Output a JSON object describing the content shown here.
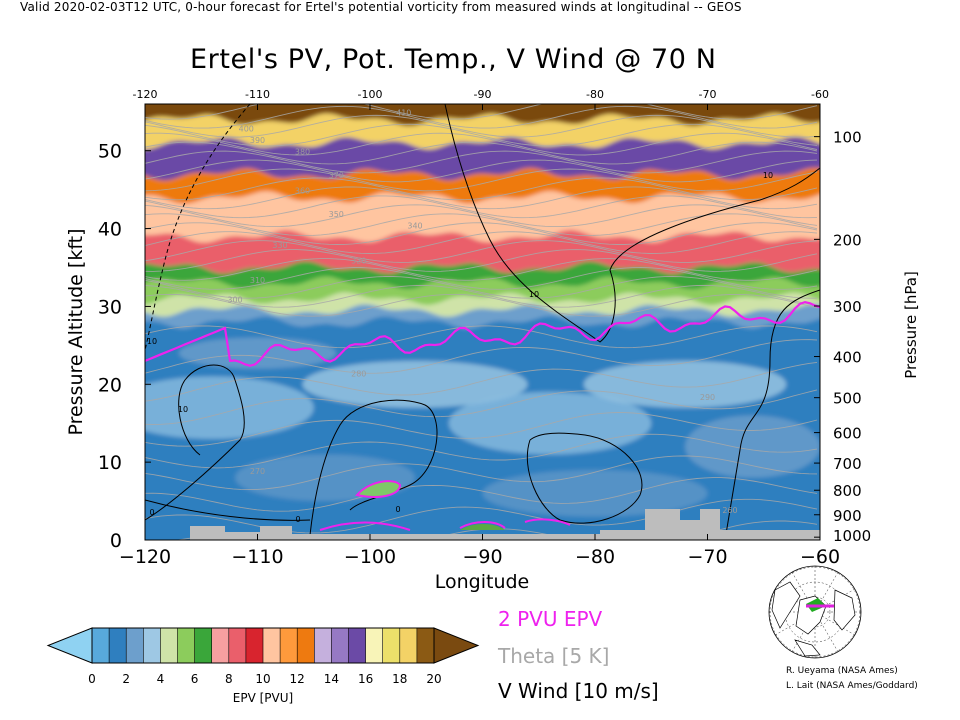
{
  "header": {
    "valid_line": "Valid 2020-02-03T12 UTC, 0-hour forecast for Ertel's potential vorticity from measured winds at longitudinal -- GEOS",
    "title": "Ertel's PV, Pot. Temp., V Wind @ 70 N"
  },
  "chart_data": {
    "type": "heatmap",
    "title": "Ertel's PV, Pot. Temp., V Wind @ 70 N",
    "xlabel": "Longitude",
    "ylabel_left": "Pressure Altitude [kft]",
    "ylabel_right": "Pressure [hPa]",
    "xlim": [
      -120,
      -60
    ],
    "ylim_kft": [
      0,
      56
    ],
    "x_ticks_bottom": [
      "−120",
      "−110",
      "−100",
      "−90",
      "−80",
      "−70",
      "−60"
    ],
    "x_ticks_top": [
      "-120",
      "-110",
      "-100",
      "-90",
      "-80",
      "-70",
      "-60"
    ],
    "y_ticks_left": [
      0,
      10,
      20,
      30,
      40,
      50
    ],
    "pressure_ticks_hPa": [
      100,
      200,
      300,
      400,
      500,
      600,
      700,
      800,
      900,
      1000
    ],
    "theta_labels_K": [
      260,
      270,
      280,
      290,
      300,
      310,
      320,
      330,
      340,
      350,
      360,
      370,
      380,
      390,
      400,
      410
    ],
    "wind_contour_labels": [
      "0",
      "10",
      "10",
      "10",
      "10",
      "0",
      "0"
    ],
    "epv_layers": [
      {
        "bottom_kft": 0,
        "top_kft": 28,
        "epv": 1.2
      },
      {
        "bottom_kft": 28,
        "top_kft": 29.5,
        "epv": 2.0
      },
      {
        "bottom_kft": 29.5,
        "top_kft": 31,
        "epv": 4.0
      },
      {
        "bottom_kft": 31,
        "top_kft": 33,
        "epv": 5.0
      },
      {
        "bottom_kft": 33,
        "top_kft": 35,
        "epv": 6.5
      },
      {
        "bottom_kft": 35,
        "top_kft": 39,
        "epv": 8.5
      },
      {
        "bottom_kft": 39,
        "top_kft": 44,
        "epv": 10.5
      },
      {
        "bottom_kft": 44,
        "top_kft": 47,
        "epv": 12.5
      },
      {
        "bottom_kft": 47,
        "top_kft": 51,
        "epv": 15.0
      },
      {
        "bottom_kft": 51,
        "top_kft": 54,
        "epv": 18.0
      },
      {
        "bottom_kft": 54,
        "top_kft": 56,
        "epv": 21.0
      }
    ],
    "colorbar": {
      "label": "EPV [PVU]",
      "tick_labels": [
        "0",
        "2",
        "4",
        "6",
        "8",
        "10",
        "12",
        "14",
        "16",
        "18",
        "20"
      ],
      "colors": [
        "#58a9db",
        "#2f7fbf",
        "#6d9fcc",
        "#9ec8e4",
        "#cfe3a8",
        "#8ccc5c",
        "#3aa63a",
        "#f6a0a0",
        "#ea5f6b",
        "#d8242e",
        "#ffc5a0",
        "#ff9a3c",
        "#ee7a10",
        "#c5b0dd",
        "#9679c4",
        "#6b4aa6",
        "#f8f4b8",
        "#ece06a",
        "#f3d266",
        "#8b5a14"
      ],
      "under_color": "#8fd2f2",
      "over_color": "#7a4a10"
    },
    "legend": [
      {
        "label": "2 PVU EPV",
        "color": "#ee22ee"
      },
      {
        "label": "Theta [5 K]",
        "color": "#a8a8a8"
      },
      {
        "label": "V Wind [10 m/s]",
        "color": "#000000"
      }
    ]
  },
  "credits": [
    "R. Ueyama (NASA Ames)",
    "L. Lait (NASA Ames/Goddard)"
  ]
}
